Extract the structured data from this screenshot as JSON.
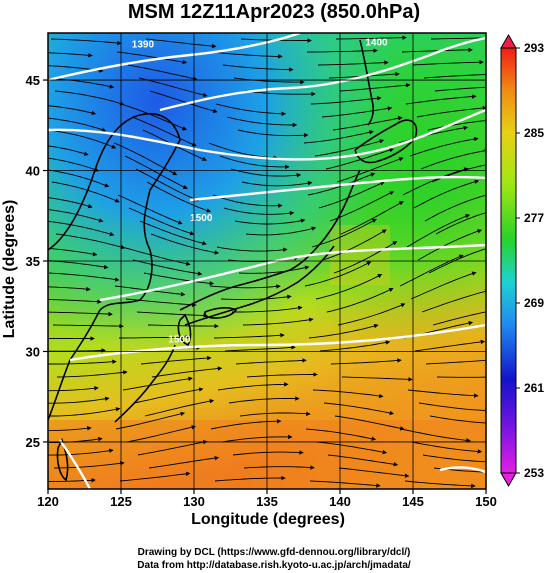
{
  "title": "MSM 12Z11Apr2023 (850.0hPa)",
  "x_axis": {
    "label": "Longitude (degrees)",
    "range": [
      120,
      150
    ],
    "ticks": [
      120,
      125,
      130,
      135,
      140,
      145,
      150
    ]
  },
  "y_axis": {
    "label": "Latitude  (degrees)",
    "range": [
      22.4,
      47.6
    ],
    "ticks": [
      25,
      30,
      35,
      40,
      45
    ]
  },
  "colorbar": {
    "range": [
      253,
      293
    ],
    "ticks": [
      "293",
      "285",
      "277",
      "269",
      "261",
      "253"
    ]
  },
  "contours": [
    {
      "label": "1400",
      "lon": 142.5,
      "lat": 46.9
    },
    {
      "label": "1390",
      "lon": 126.5,
      "lat": 46.8
    },
    {
      "label": "1500",
      "lon": 130.5,
      "lat": 37.2
    },
    {
      "label": "1500",
      "lon": 129.0,
      "lat": 30.5
    }
  ],
  "colors": {
    "cold": "#1c9ee6",
    "mid": "#3cd23c",
    "warm": "#f07a1e"
  },
  "credits": [
    "Drawing by DCL (https://www.gfd-dennou.org/library/dcl/)",
    "Data from http://database.rish.kyoto-u.ac.jp/arch/jmadata/"
  ]
}
